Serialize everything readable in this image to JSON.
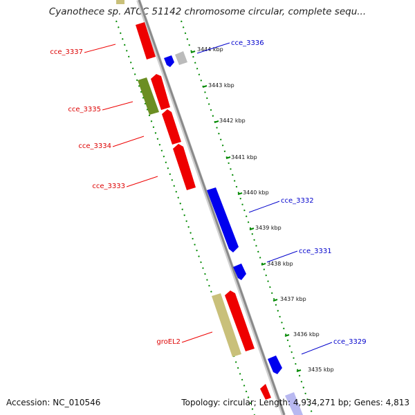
{
  "title": "Cyanothece sp. ATCC 51142 chromosome circular, complete sequ...",
  "footer": {
    "accession": "Accession: NC_010546",
    "summary": "Topology: circular; Length: 4,934,271 bp; Genes: 4,813"
  },
  "ticks": [
    "3444 kbp",
    "3443 kbp",
    "3442 kbp",
    "3441 kbp",
    "3440 kbp",
    "3439 kbp",
    "3438 kbp",
    "3437 kbp",
    "3436 kbp",
    "3435 kbp"
  ],
  "gene_labels": {
    "reverse": [
      "cce_3337",
      "cce_3335",
      "cce_3334",
      "cce_3333",
      "groEL2"
    ],
    "forward": [
      "cce_3336",
      "cce_3332",
      "cce_3331",
      "cce_3329"
    ]
  },
  "colors": {
    "reverse_strand": "#ee0000",
    "forward_strand": "#0000ee",
    "olive_feature": "#6b8e23",
    "khaki_feature": "#c9c07a",
    "grey_feature": "#bbbbbb",
    "backbone": "#8a8a8a",
    "guide_dots": "#008800"
  }
}
